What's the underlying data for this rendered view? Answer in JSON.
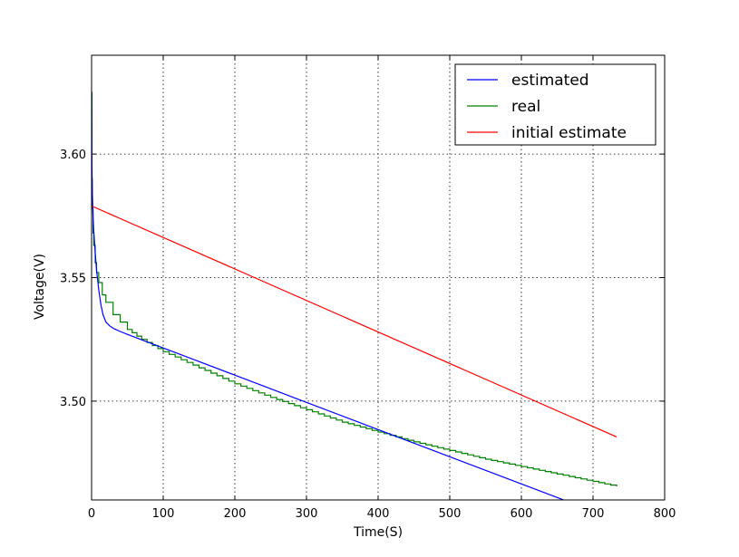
{
  "chart_data": {
    "type": "line",
    "xlabel": "Time(S)",
    "ylabel": "Voltage(V)",
    "xlim": [
      0,
      800
    ],
    "ylim": [
      3.46,
      3.64
    ],
    "xticks": [
      0,
      100,
      200,
      300,
      400,
      500,
      600,
      700,
      800
    ],
    "xtick_labels": [
      "0",
      "100",
      "200",
      "300",
      "400",
      "500",
      "600",
      "700",
      "800"
    ],
    "yticks": [
      3.5,
      3.55,
      3.6
    ],
    "ytick_labels": [
      "3.50",
      "3.55",
      "3.60"
    ],
    "grid": true,
    "legend_position": "top-right",
    "series": [
      {
        "name": "estimated",
        "color": "#0000ff",
        "x": [
          0,
          0.5,
          1,
          2,
          3,
          5,
          7,
          10,
          13,
          16,
          20,
          25,
          30,
          40,
          50,
          70,
          100,
          150,
          200,
          300,
          400,
          500,
          600,
          700,
          733
        ],
        "y": [
          3.625,
          3.595,
          3.585,
          3.575,
          3.569,
          3.56,
          3.553,
          3.545,
          3.539,
          3.535,
          3.532,
          3.5305,
          3.5295,
          3.5282,
          3.527,
          3.5248,
          3.5215,
          3.516,
          3.5105,
          3.4995,
          3.4885,
          3.4775,
          3.4665,
          3.4555,
          3.452
        ]
      },
      {
        "name": "real",
        "color": "#008000",
        "x": [
          0,
          0.5,
          1,
          2,
          3,
          5,
          7,
          10,
          15,
          20,
          30,
          40,
          50,
          70,
          100,
          150,
          200,
          250,
          300,
          350,
          400,
          450,
          500,
          550,
          600,
          650,
          700,
          733
        ],
        "y": [
          3.625,
          3.59,
          3.578,
          3.568,
          3.563,
          3.556,
          3.552,
          3.548,
          3.543,
          3.54,
          3.535,
          3.532,
          3.529,
          3.525,
          3.52,
          3.5135,
          3.507,
          3.5015,
          3.4965,
          3.4915,
          3.4875,
          3.4835,
          3.48,
          3.4765,
          3.4735,
          3.4705,
          3.4675,
          3.4655
        ]
      },
      {
        "name": "initial estimate",
        "color": "#ff0000",
        "x": [
          0,
          733
        ],
        "y": [
          3.579,
          3.4855
        ]
      }
    ]
  }
}
